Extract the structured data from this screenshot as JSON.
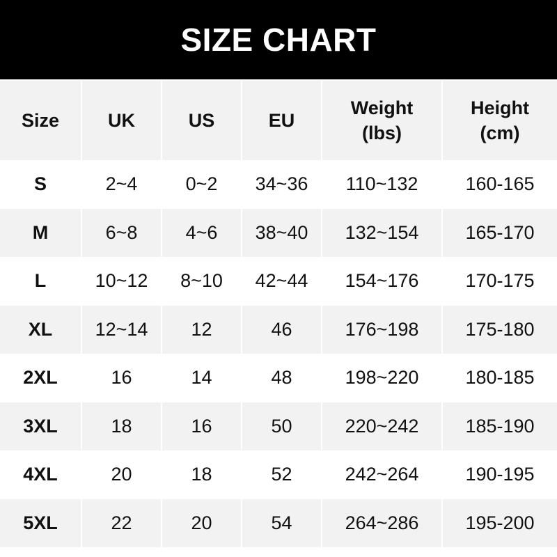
{
  "title": "SIZE CHART",
  "headers": [
    {
      "line1": "Size",
      "line2": ""
    },
    {
      "line1": "UK",
      "line2": ""
    },
    {
      "line1": "US",
      "line2": ""
    },
    {
      "line1": "EU",
      "line2": ""
    },
    {
      "line1": "Weight",
      "line2": "(lbs)"
    },
    {
      "line1": "Height",
      "line2": "(cm)"
    }
  ],
  "rows": [
    [
      "S",
      "2~4",
      "0~2",
      "34~36",
      "110~132",
      "160-165"
    ],
    [
      "M",
      "6~8",
      "4~6",
      "38~40",
      "132~154",
      "165-170"
    ],
    [
      "L",
      "10~12",
      "8~10",
      "42~44",
      "154~176",
      "170-175"
    ],
    [
      "XL",
      "12~14",
      "12",
      "46",
      "176~198",
      "175-180"
    ],
    [
      "2XL",
      "16",
      "14",
      "48",
      "198~220",
      "180-185"
    ],
    [
      "3XL",
      "18",
      "16",
      "50",
      "220~242",
      "185-190"
    ],
    [
      "4XL",
      "20",
      "18",
      "52",
      "242~264",
      "190-195"
    ],
    [
      "5XL",
      "22",
      "20",
      "54",
      "264~286",
      "195-200"
    ]
  ],
  "colors": {
    "banner": "#000000",
    "row_alt": "#f2f2f2",
    "text": "#111111"
  }
}
